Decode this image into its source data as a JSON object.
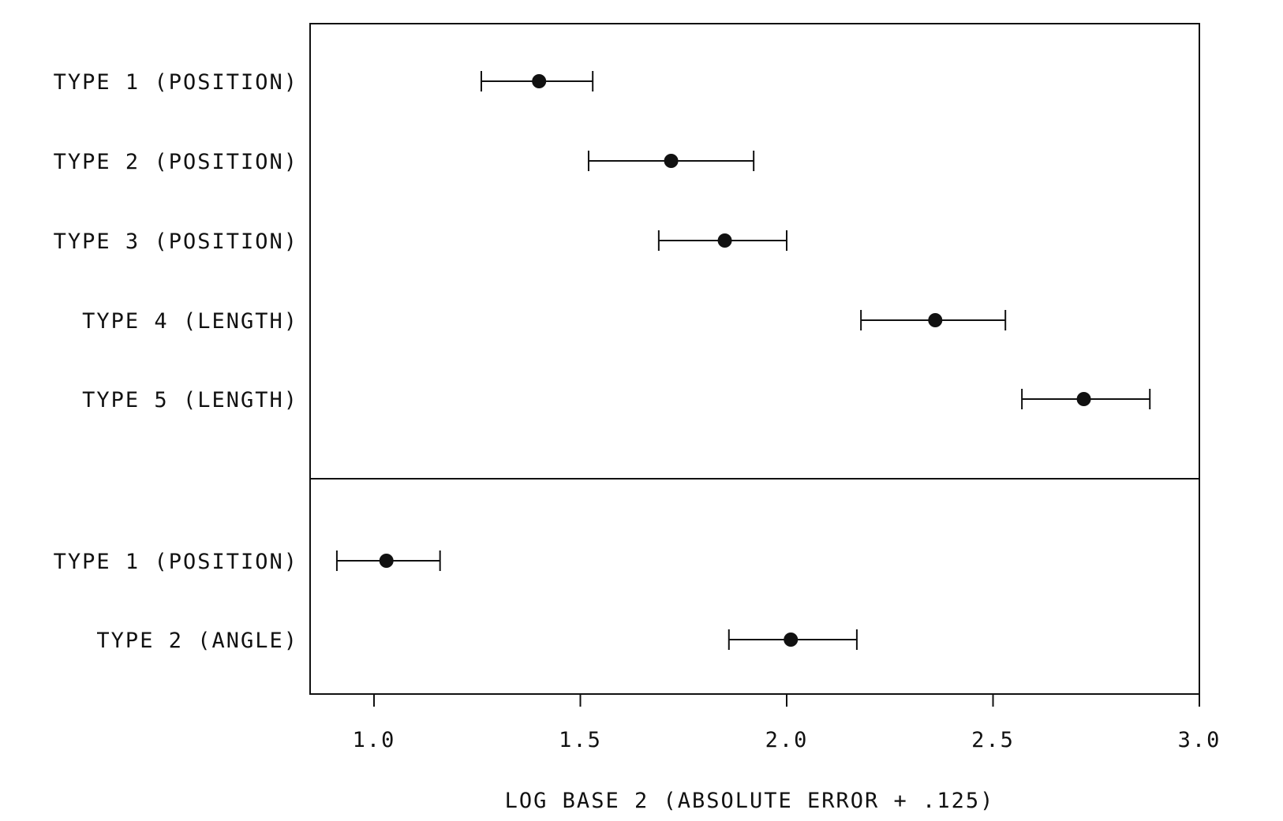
{
  "chart_data": {
    "type": "scatter",
    "subtype": "dot plot with error bars",
    "xlabel": "LOG BASE 2 (ABSOLUTE ERROR + .125)",
    "xlim": [
      0.85,
      3.0
    ],
    "xticks": [
      1.0,
      1.5,
      2.0,
      2.5,
      3.0
    ],
    "xtick_labels": [
      "1.0",
      "1.5",
      "2.0",
      "2.5",
      "3.0"
    ],
    "grid": false,
    "legend": "none",
    "panels": [
      {
        "rows": [
          {
            "label": "TYPE 1 (POSITION)",
            "value": 1.4,
            "low": 1.26,
            "high": 1.53
          },
          {
            "label": "TYPE 2 (POSITION)",
            "value": 1.72,
            "low": 1.52,
            "high": 1.92
          },
          {
            "label": "TYPE 3 (POSITION)",
            "value": 1.85,
            "low": 1.69,
            "high": 2.0
          },
          {
            "label": "TYPE 4 (LENGTH)",
            "value": 2.36,
            "low": 2.18,
            "high": 2.53
          },
          {
            "label": "TYPE 5 (LENGTH)",
            "value": 2.72,
            "low": 2.57,
            "high": 2.88
          }
        ]
      },
      {
        "rows": [
          {
            "label": "TYPE 1 (POSITION)",
            "value": 1.03,
            "low": 0.91,
            "high": 1.16
          },
          {
            "label": "TYPE 2 (ANGLE)",
            "value": 2.01,
            "low": 1.86,
            "high": 2.17
          }
        ]
      }
    ]
  }
}
